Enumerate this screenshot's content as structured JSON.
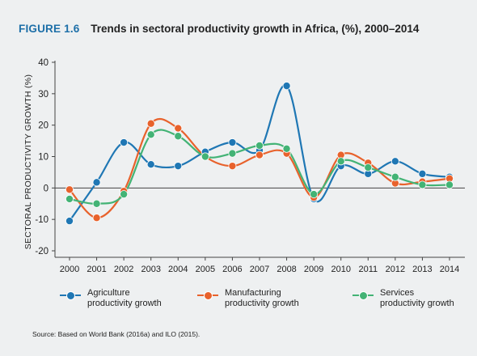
{
  "figure": {
    "number": "FIGURE 1.6",
    "title": "Trends in sectoral productivity growth in Africa, (%), 2000–2014"
  },
  "source": "Source: Based on World Bank (2016a) and ILO (2015).",
  "legend": [
    {
      "label": "Agriculture\nproductivity growth"
    },
    {
      "label": "Manufacturing\nproductivity growth"
    },
    {
      "label": "Services\nproductivity growth"
    }
  ],
  "chart_data": {
    "type": "line",
    "title": "Trends in sectoral productivity growth in Africa, (%), 2000–2014",
    "xlabel": "",
    "ylabel": "SECTORAL PRODUCTIVITY GROWTH (%)",
    "ylim": [
      -20,
      40
    ],
    "yticks": [
      -20,
      -10,
      0,
      10,
      20,
      30,
      40
    ],
    "categories": [
      "2000",
      "2001",
      "2002",
      "2003",
      "2004",
      "2005",
      "2006",
      "2007",
      "2008",
      "2009",
      "2010",
      "2011",
      "2012",
      "2013",
      "2014"
    ],
    "grid": false,
    "legend_position": "bottom",
    "series": [
      {
        "name": "Agriculture productivity growth",
        "color": "#1f77b4",
        "values": [
          -10.5,
          1.8,
          14.5,
          7.5,
          7.0,
          11.5,
          14.5,
          12.0,
          32.5,
          -3.5,
          7.0,
          4.5,
          8.5,
          4.5,
          3.5
        ]
      },
      {
        "name": "Manufacturing productivity growth",
        "color": "#e8622c",
        "values": [
          -0.5,
          -9.5,
          -1.0,
          20.5,
          19.0,
          10.0,
          7.0,
          10.5,
          11.0,
          -3.0,
          10.5,
          8.0,
          1.5,
          2.0,
          3.0
        ]
      },
      {
        "name": "Services productivity growth",
        "color": "#43b375",
        "values": [
          -3.5,
          -5.0,
          -2.0,
          17.0,
          16.5,
          10.0,
          11.0,
          13.5,
          12.5,
          -2.0,
          8.5,
          6.5,
          3.5,
          1.0,
          1.0
        ]
      }
    ]
  }
}
